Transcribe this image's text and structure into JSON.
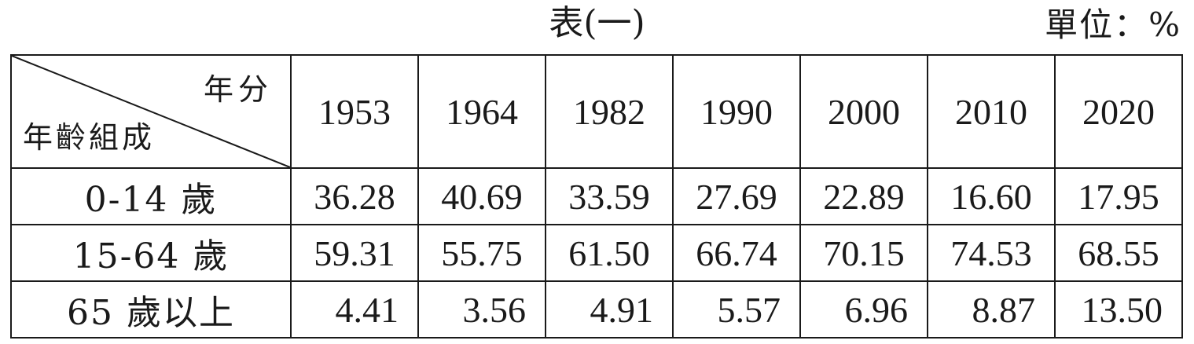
{
  "title": "表(一)",
  "unit": "單位：%",
  "corner": {
    "top_label": "年分",
    "bottom_label": "年齡組成"
  },
  "years": [
    "1953",
    "1964",
    "1982",
    "1990",
    "2000",
    "2010",
    "2020"
  ],
  "rows": [
    {
      "label": "0-14 歲",
      "values": [
        "36.28",
        "40.69",
        "33.59",
        "27.69",
        "22.89",
        "16.60",
        "17.95"
      ]
    },
    {
      "label": "15-64 歲",
      "values": [
        "59.31",
        "55.75",
        "61.50",
        "66.74",
        "70.15",
        "74.53",
        "68.55"
      ]
    },
    {
      "label": "65 歲以上",
      "values": [
        "4.41",
        "3.56",
        "4.91",
        "5.57",
        "6.96",
        "8.87",
        "13.50"
      ]
    }
  ]
}
